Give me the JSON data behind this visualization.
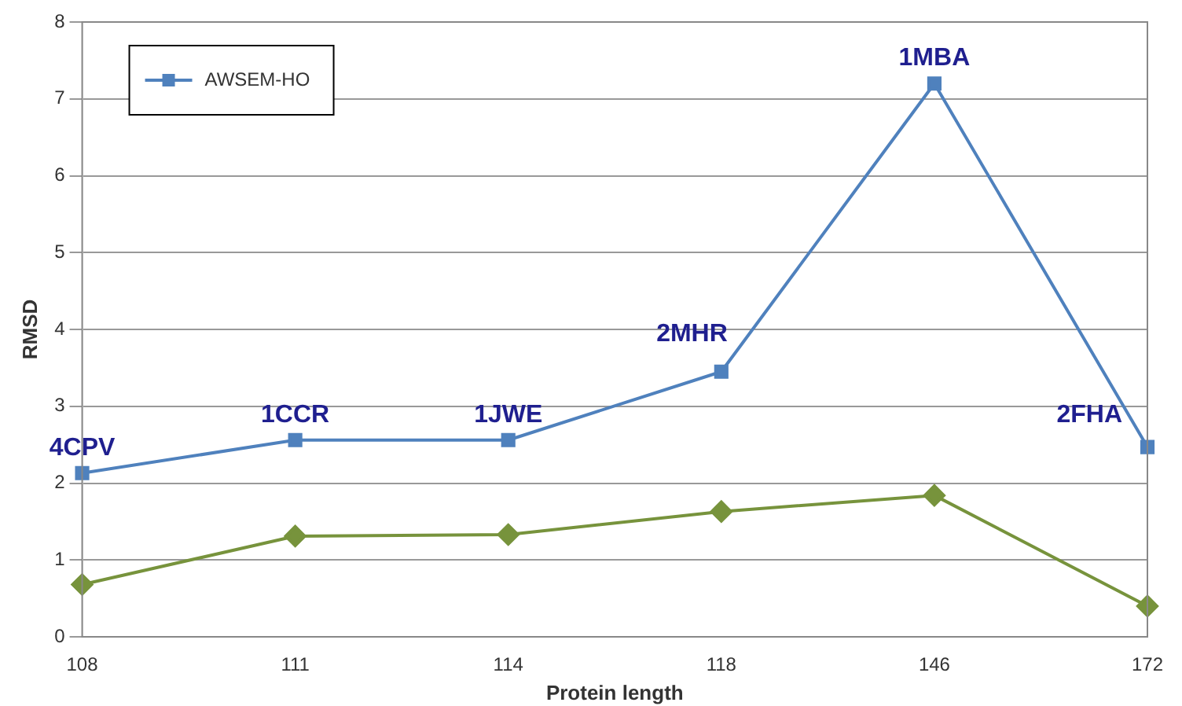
{
  "chart_data": {
    "type": "line",
    "xlabel": "Protein length",
    "ylabel": "RMSD",
    "categories": [
      "108",
      "111",
      "114",
      "118",
      "146",
      "172"
    ],
    "series": [
      {
        "color": "#77933c",
        "marker": "diamond",
        "values": [
          0.68,
          1.31,
          1.33,
          1.63,
          1.84,
          0.4
        ]
      },
      {
        "name": "AWSEM-HO",
        "color": "#4f81bd",
        "marker": "square",
        "values": [
          2.13,
          2.56,
          2.56,
          3.45,
          7.2,
          2.47
        ]
      }
    ],
    "ylim": [
      0,
      8
    ],
    "yticks": [
      0,
      1,
      2,
      3,
      4,
      5,
      6,
      7,
      8
    ],
    "grid": "y",
    "legend": "top left",
    "line_style": "solid",
    "annotations": [
      {
        "text": "4CPV",
        "x": "108",
        "y": 2.13
      },
      {
        "text": "1CCR",
        "x": "111",
        "y": 2.56
      },
      {
        "text": "1JWE",
        "x": "114",
        "y": 2.56
      },
      {
        "text": "2MHR",
        "x": "118",
        "y": 3.45
      },
      {
        "text": "1MBA",
        "x": "146",
        "y": 7.2
      },
      {
        "text": "2FHA",
        "x": "172",
        "y": 2.47
      }
    ]
  }
}
